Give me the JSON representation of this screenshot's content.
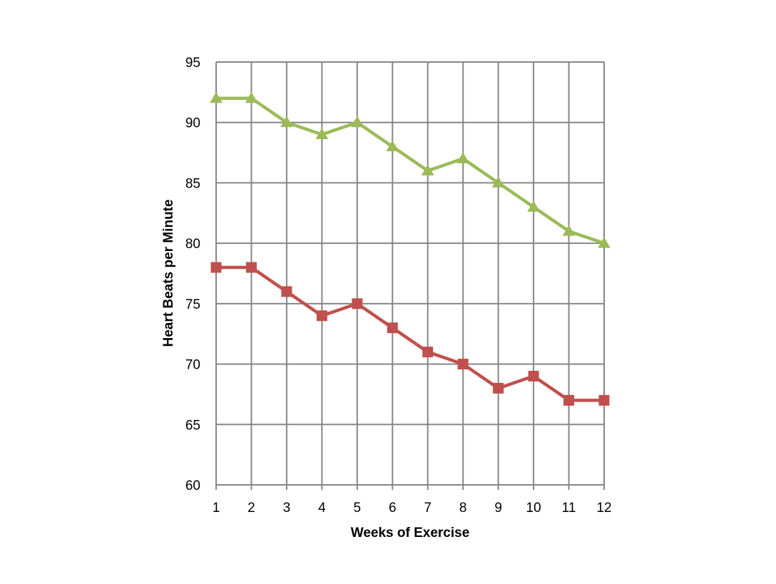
{
  "chart_data": {
    "type": "line",
    "title": "",
    "xlabel": "Weeks of Exercise",
    "ylabel": "Heart Beats per Minute",
    "x": [
      1,
      2,
      3,
      4,
      5,
      6,
      7,
      8,
      9,
      10,
      11,
      12
    ],
    "xtick_labels": [
      "1",
      "2",
      "3",
      "4",
      "5",
      "6",
      "7",
      "8",
      "9",
      "10",
      "11",
      "12"
    ],
    "ylim": [
      60,
      95
    ],
    "yticks": [
      60,
      65,
      70,
      75,
      80,
      85,
      90,
      95
    ],
    "ytick_labels": [
      "60",
      "65",
      "70",
      "75",
      "80",
      "85",
      "90",
      "95"
    ],
    "grid": true,
    "legend": "none",
    "series": [
      {
        "values": [
          92,
          92,
          90,
          89,
          90,
          88,
          86,
          87,
          85,
          83,
          81,
          80
        ],
        "color": "#9BBB59",
        "marker": "triangle"
      },
      {
        "values": [
          78,
          78,
          76,
          74,
          75,
          73,
          71,
          70,
          68,
          69,
          67,
          67
        ],
        "color": "#C0504D",
        "marker": "square"
      }
    ]
  }
}
